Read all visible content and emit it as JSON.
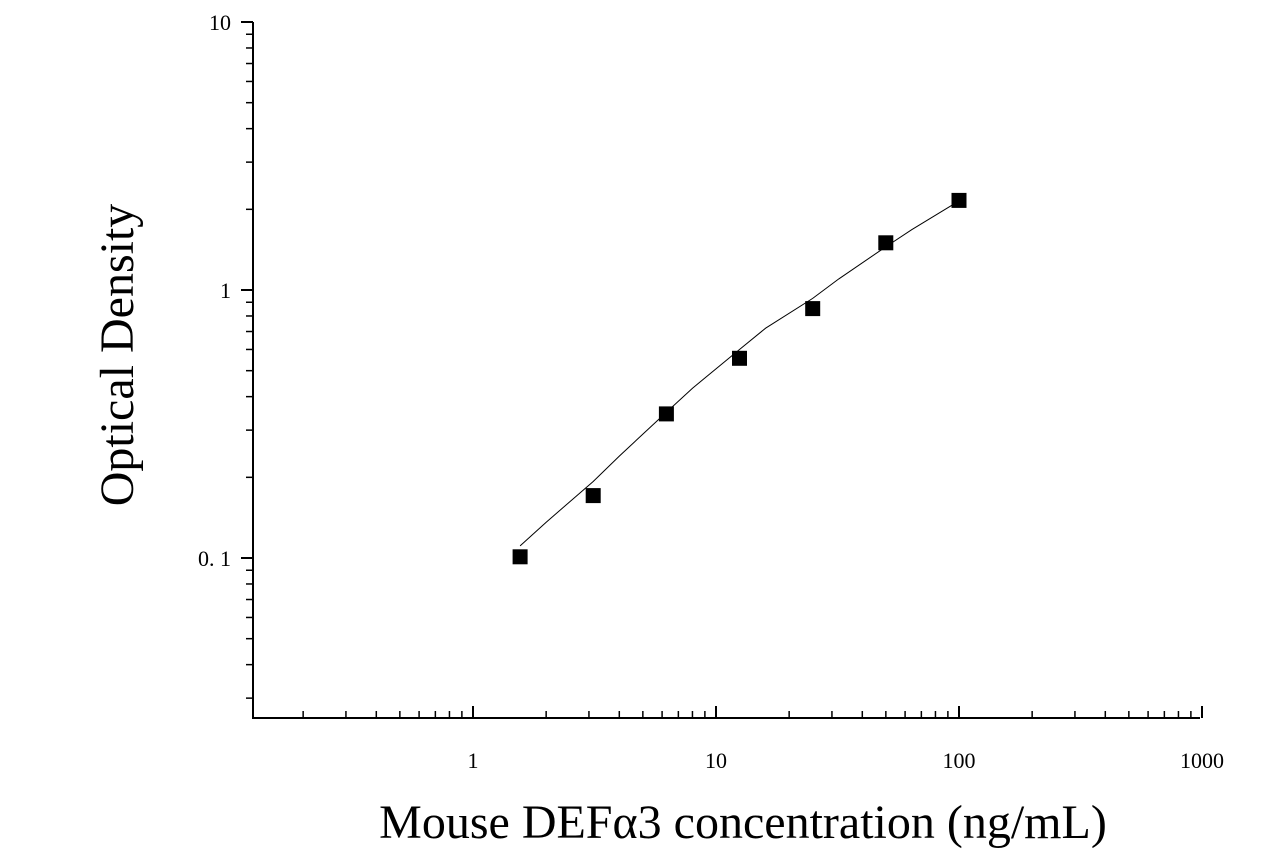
{
  "chart_data": {
    "type": "scatter",
    "xlabel": "Mouse DEFα3 concentration (ng/mL)",
    "ylabel": "Optical Density",
    "x_scale": "log",
    "y_scale": "log",
    "xlim": [
      0.12,
      1000
    ],
    "ylim": [
      0.025,
      10
    ],
    "x_ticks": [
      1,
      10,
      100,
      1000
    ],
    "x_tick_labels": [
      "1",
      "10",
      "100",
      "1000"
    ],
    "y_ticks": [
      0.1,
      1,
      10
    ],
    "y_tick_labels": [
      "0. 1",
      "1",
      "10"
    ],
    "grid": false,
    "legend": "none",
    "series": [
      {
        "marker": "square",
        "color": "#000000",
        "x": [
          1.5625,
          3.125,
          6.25,
          12.5,
          25,
          50,
          100
        ],
        "y": [
          0.101,
          0.171,
          0.345,
          0.556,
          0.852,
          1.5,
          2.16
        ]
      }
    ],
    "fit_curve": {
      "color": "#000000",
      "x": [
        1.5625,
        2,
        3.125,
        4,
        6.25,
        8,
        12.5,
        16,
        25,
        32,
        50,
        64,
        100
      ],
      "y": [
        0.111,
        0.136,
        0.193,
        0.24,
        0.35,
        0.43,
        0.6,
        0.72,
        0.93,
        1.1,
        1.45,
        1.68,
        2.15
      ]
    }
  }
}
